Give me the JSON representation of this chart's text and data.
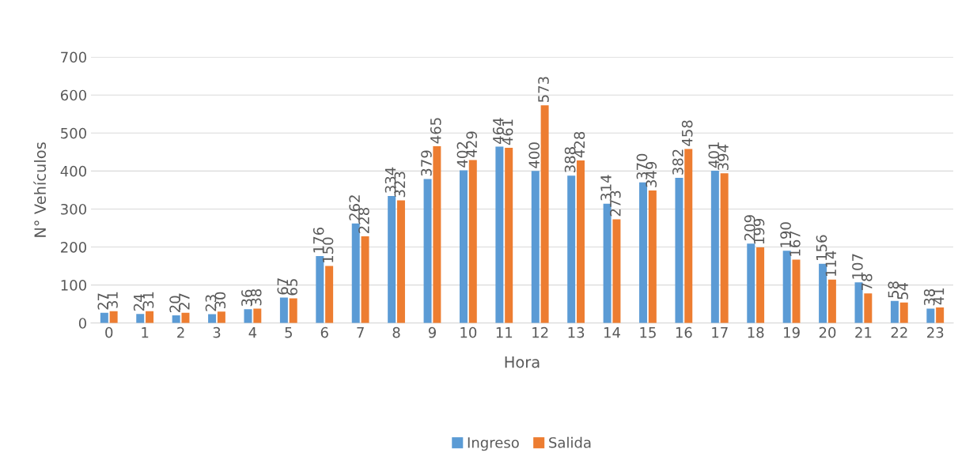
{
  "chart_data": {
    "type": "bar",
    "xlabel": "Hora",
    "ylabel": "N° Vehículos",
    "categories": [
      "0",
      "1",
      "2",
      "3",
      "4",
      "5",
      "6",
      "7",
      "8",
      "9",
      "10",
      "11",
      "12",
      "13",
      "14",
      "15",
      "16",
      "17",
      "18",
      "19",
      "20",
      "21",
      "22",
      "23"
    ],
    "series": [
      {
        "name": "Ingreso",
        "color": "#5b9bd5",
        "values": [
          27,
          24,
          20,
          23,
          36,
          67,
          176,
          262,
          334,
          379,
          402,
          464,
          400,
          388,
          314,
          370,
          382,
          401,
          209,
          190,
          156,
          107,
          58,
          38
        ]
      },
      {
        "name": "Salida",
        "color": "#ed7d31",
        "values": [
          31,
          31,
          27,
          30,
          38,
          65,
          150,
          228,
          323,
          465,
          429,
          461,
          573,
          428,
          273,
          349,
          458,
          394,
          199,
          167,
          114,
          78,
          54,
          41
        ]
      }
    ],
    "ylim": [
      0,
      700
    ],
    "yticks": [
      0,
      100,
      200,
      300,
      400,
      500,
      600,
      700
    ],
    "grid": "y",
    "legend": "bottom",
    "data_labels": true
  }
}
